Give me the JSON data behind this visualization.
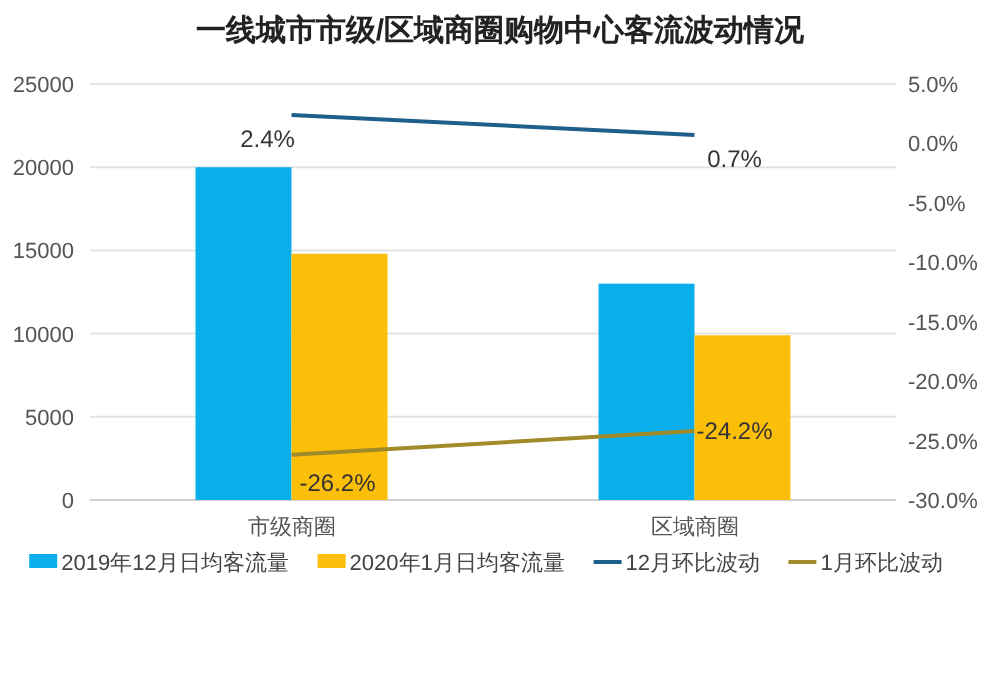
{
  "chart_data": {
    "type": "bar",
    "title": "一线城市市级/区域商圈购物中心客流波动情况",
    "categories": [
      "市级商圈",
      "区域商圈"
    ],
    "series": [
      {
        "name": "2019年12月日均客流量",
        "color": "#0aaeea",
        "values": [
          20000,
          13000
        ]
      },
      {
        "name": "2020年1月日均客流量",
        "color": "#fbbf0a",
        "values": [
          14800,
          9900
        ]
      },
      {
        "name": "12月环比波动",
        "type": "line",
        "axis": "y2",
        "color": "#1f5f8b",
        "values": [
          2.4,
          0.7
        ],
        "value_labels": [
          "2.4%",
          "0.7%"
        ]
      },
      {
        "name": "1月环比波动",
        "type": "line",
        "axis": "y2",
        "color": "#a08a2a",
        "values": [
          -26.2,
          -24.2
        ],
        "value_labels": [
          "-26.2%",
          "-24.2%"
        ]
      }
    ],
    "ylim": [
      0,
      25000
    ],
    "yticks": [
      0,
      5000,
      10000,
      15000,
      20000,
      25000
    ],
    "y2lim": [
      -30,
      5
    ],
    "y2ticks": [
      {
        "value": -30,
        "label": "-30.0%"
      },
      {
        "value": -25,
        "label": "-25.0%"
      },
      {
        "value": -20,
        "label": "-20.0%"
      },
      {
        "value": -15,
        "label": "-15.0%"
      },
      {
        "value": -10,
        "label": "-10.0%"
      },
      {
        "value": -5,
        "label": "-5.0%"
      },
      {
        "value": 0,
        "label": "0.0%"
      },
      {
        "value": 5,
        "label": "5.0%"
      }
    ],
    "grid": "y",
    "legend": "bottom",
    "marker": "none",
    "line_style": "solid"
  }
}
